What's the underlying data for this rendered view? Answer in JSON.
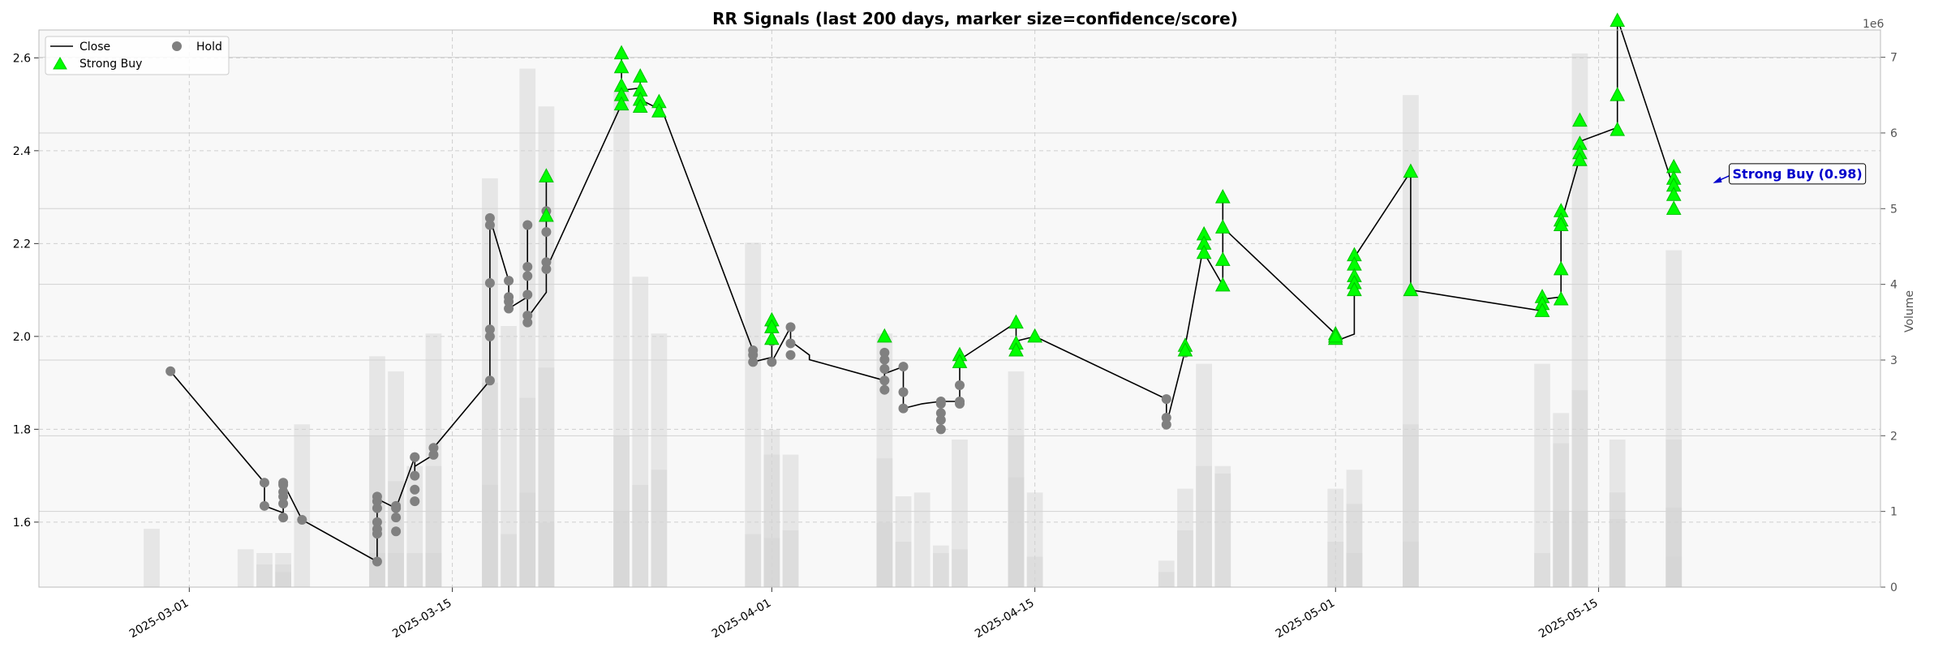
{
  "chart_data": {
    "type": "line",
    "title": "RR Signals (last 200 days, marker size=confidence/score)",
    "ylabel_right": "Volume",
    "right_axis_multiplier": "1e6",
    "xlim": [
      "2025-02-21",
      "2025-05-30"
    ],
    "ylim": [
      1.46,
      2.66
    ],
    "y2lim": [
      0,
      7.36
    ],
    "y_ticks": [
      "1.6",
      "1.8",
      "2.0",
      "2.2",
      "2.4",
      "2.6"
    ],
    "y2_ticks": [
      "0",
      "1",
      "2",
      "3",
      "4",
      "5",
      "6",
      "7"
    ],
    "x_ticks": [
      "2025-03-01",
      "2025-03-15",
      "2025-04-01",
      "2025-04-15",
      "2025-05-01",
      "2025-05-15"
    ],
    "legend": {
      "placement": "top-left",
      "entries": [
        "Close",
        "Strong Buy",
        "Hold"
      ]
    },
    "colors": {
      "close_line": "#000000",
      "strong_buy": "#00ff00",
      "hold": "#808080",
      "volume_bar": "#d3d3d3",
      "annotation": "#0000cc"
    },
    "annotation": {
      "text": "Strong Buy (0.98)",
      "x": "2025-05-21",
      "y": 2.33
    },
    "close": [
      [
        "2025-02-28",
        1.925
      ],
      [
        "2025-03-05",
        1.685
      ],
      [
        "2025-03-05",
        1.635
      ],
      [
        "2025-03-06",
        1.62
      ],
      [
        "2025-03-06",
        1.61
      ],
      [
        "2025-03-06",
        1.685
      ],
      [
        "2025-03-07",
        1.605
      ],
      [
        "2025-03-11",
        1.515
      ],
      [
        "2025-03-11",
        1.6
      ],
      [
        "2025-03-11",
        1.65
      ],
      [
        "2025-03-12",
        1.63
      ],
      [
        "2025-03-12",
        1.61
      ],
      [
        "2025-03-12",
        1.63
      ],
      [
        "2025-03-13",
        1.74
      ],
      [
        "2025-03-13",
        1.7
      ],
      [
        "2025-03-13",
        1.72
      ],
      [
        "2025-03-14",
        1.745
      ],
      [
        "2025-03-14",
        1.76
      ],
      [
        "2025-03-17",
        1.905
      ],
      [
        "2025-03-17",
        2.01
      ],
      [
        "2025-03-17",
        2.255
      ],
      [
        "2025-03-18",
        2.12
      ],
      [
        "2025-03-18",
        2.085
      ],
      [
        "2025-03-18",
        2.06
      ],
      [
        "2025-03-19",
        2.085
      ],
      [
        "2025-03-19",
        2.24
      ],
      [
        "2025-03-19",
        2.09
      ],
      [
        "2025-03-19",
        2.04
      ],
      [
        "2025-03-20",
        2.095
      ],
      [
        "2025-03-20",
        2.345
      ],
      [
        "2025-03-20",
        2.265
      ],
      [
        "2025-03-20",
        2.16
      ],
      [
        "2025-03-20",
        2.145
      ],
      [
        "2025-03-24",
        2.5
      ],
      [
        "2025-03-24",
        2.61
      ],
      [
        "2025-03-24",
        2.53
      ],
      [
        "2025-03-25",
        2.535
      ],
      [
        "2025-03-25",
        2.56
      ],
      [
        "2025-03-25",
        2.51
      ],
      [
        "2025-03-26",
        2.49
      ],
      [
        "2025-03-26",
        2.505
      ],
      [
        "2025-03-31",
        1.97
      ],
      [
        "2025-03-31",
        1.96
      ],
      [
        "2025-03-31",
        1.945
      ],
      [
        "2025-04-01",
        1.955
      ],
      [
        "2025-04-01",
        2.02
      ],
      [
        "2025-04-01",
        2.03
      ],
      [
        "2025-04-01",
        1.945
      ],
      [
        "2025-04-02",
        2.02
      ],
      [
        "2025-04-02",
        1.99
      ],
      [
        "2025-04-03",
        1.96
      ],
      [
        "2025-04-03",
        1.95
      ],
      [
        "2025-04-07",
        1.905
      ],
      [
        "2025-04-07",
        1.96
      ],
      [
        "2025-04-07",
        1.92
      ],
      [
        "2025-04-08",
        1.935
      ],
      [
        "2025-04-08",
        1.845
      ],
      [
        "2025-04-09",
        1.855
      ],
      [
        "2025-04-10",
        1.86
      ],
      [
        "2025-04-10",
        1.82
      ],
      [
        "2025-04-10",
        1.8
      ],
      [
        "2025-04-10",
        1.86
      ],
      [
        "2025-04-11",
        1.86
      ],
      [
        "2025-04-11",
        1.95
      ],
      [
        "2025-04-14",
        2.03
      ],
      [
        "2025-04-14",
        1.98
      ],
      [
        "2025-04-14",
        1.99
      ],
      [
        "2025-04-15",
        2.0
      ],
      [
        "2025-04-22",
        1.865
      ],
      [
        "2025-04-22",
        1.81
      ],
      [
        "2025-04-23",
        1.97
      ],
      [
        "2025-04-23",
        1.98
      ],
      [
        "2025-04-24",
        2.2
      ],
      [
        "2025-04-24",
        2.18
      ],
      [
        "2025-04-25",
        2.11
      ],
      [
        "2025-04-25",
        2.3
      ],
      [
        "2025-04-25",
        2.235
      ],
      [
        "2025-05-01",
        2.005
      ],
      [
        "2025-05-01",
        1.99
      ],
      [
        "2025-05-02",
        2.005
      ],
      [
        "2025-05-02",
        2.145
      ],
      [
        "2025-05-02",
        2.17
      ],
      [
        "2025-05-05",
        2.355
      ],
      [
        "2025-05-05",
        2.1
      ],
      [
        "2025-05-12",
        2.055
      ],
      [
        "2025-05-12",
        2.08
      ],
      [
        "2025-05-13",
        2.085
      ],
      [
        "2025-05-13",
        2.26
      ],
      [
        "2025-05-13",
        2.245
      ],
      [
        "2025-05-14",
        2.385
      ],
      [
        "2025-05-14",
        2.42
      ],
      [
        "2025-05-16",
        2.45
      ],
      [
        "2025-05-16",
        2.685
      ],
      [
        "2025-05-19",
        2.32
      ],
      [
        "2025-05-19",
        2.345
      ]
    ],
    "signals": {
      "strong_buy": [
        [
          "2025-03-20",
          2.345
        ],
        [
          "2025-03-20",
          2.26
        ],
        [
          "2025-03-24",
          2.61
        ],
        [
          "2025-03-24",
          2.58
        ],
        [
          "2025-03-24",
          2.54
        ],
        [
          "2025-03-24",
          2.52
        ],
        [
          "2025-03-24",
          2.5
        ],
        [
          "2025-03-25",
          2.56
        ],
        [
          "2025-03-25",
          2.53
        ],
        [
          "2025-03-25",
          2.51
        ],
        [
          "2025-03-25",
          2.495
        ],
        [
          "2025-03-26",
          2.505
        ],
        [
          "2025-03-26",
          2.485
        ],
        [
          "2025-04-01",
          1.995
        ],
        [
          "2025-04-01",
          2.035
        ],
        [
          "2025-04-01",
          2.02
        ],
        [
          "2025-04-07",
          2.0
        ],
        [
          "2025-04-11",
          1.96
        ],
        [
          "2025-04-11",
          1.945
        ],
        [
          "2025-04-14",
          2.03
        ],
        [
          "2025-04-14",
          1.985
        ],
        [
          "2025-04-14",
          1.97
        ],
        [
          "2025-04-15",
          2.0
        ],
        [
          "2025-04-23",
          1.98
        ],
        [
          "2025-04-23",
          1.97
        ],
        [
          "2025-04-24",
          2.22
        ],
        [
          "2025-04-24",
          2.2
        ],
        [
          "2025-04-24",
          2.18
        ],
        [
          "2025-04-25",
          2.3
        ],
        [
          "2025-04-25",
          2.235
        ],
        [
          "2025-04-25",
          2.165
        ],
        [
          "2025-04-25",
          2.11
        ],
        [
          "2025-05-01",
          2.005
        ],
        [
          "2025-05-01",
          1.995
        ],
        [
          "2025-05-01",
          2.0
        ],
        [
          "2025-05-02",
          2.175
        ],
        [
          "2025-05-02",
          2.155
        ],
        [
          "2025-05-02",
          2.13
        ],
        [
          "2025-05-02",
          2.115
        ],
        [
          "2025-05-02",
          2.1
        ],
        [
          "2025-05-05",
          2.355
        ],
        [
          "2025-05-05",
          2.1
        ],
        [
          "2025-05-12",
          2.085
        ],
        [
          "2025-05-12",
          2.07
        ],
        [
          "2025-05-12",
          2.055
        ],
        [
          "2025-05-13",
          2.08
        ],
        [
          "2025-05-13",
          2.145
        ],
        [
          "2025-05-13",
          2.27
        ],
        [
          "2025-05-13",
          2.25
        ],
        [
          "2025-05-13",
          2.24
        ],
        [
          "2025-05-14",
          2.465
        ],
        [
          "2025-05-14",
          2.415
        ],
        [
          "2025-05-14",
          2.395
        ],
        [
          "2025-05-14",
          2.38
        ],
        [
          "2025-05-16",
          2.68
        ],
        [
          "2025-05-16",
          2.52
        ],
        [
          "2025-05-16",
          2.445
        ],
        [
          "2025-05-19",
          2.365
        ],
        [
          "2025-05-19",
          2.34
        ],
        [
          "2025-05-19",
          2.325
        ],
        [
          "2025-05-19",
          2.305
        ],
        [
          "2025-05-19",
          2.275
        ]
      ],
      "hold": [
        [
          "2025-02-28",
          1.925
        ],
        [
          "2025-03-05",
          1.685
        ],
        [
          "2025-03-05",
          1.635
        ],
        [
          "2025-03-06",
          1.68
        ],
        [
          "2025-03-06",
          1.685
        ],
        [
          "2025-03-06",
          1.665
        ],
        [
          "2025-03-06",
          1.655
        ],
        [
          "2025-03-06",
          1.64
        ],
        [
          "2025-03-06",
          1.61
        ],
        [
          "2025-03-07",
          1.605
        ],
        [
          "2025-03-11",
          1.515
        ],
        [
          "2025-03-11",
          1.6
        ],
        [
          "2025-03-11",
          1.585
        ],
        [
          "2025-03-11",
          1.575
        ],
        [
          "2025-03-11",
          1.63
        ],
        [
          "2025-03-11",
          1.655
        ],
        [
          "2025-03-11",
          1.645
        ],
        [
          "2025-03-12",
          1.63
        ],
        [
          "2025-03-12",
          1.61
        ],
        [
          "2025-03-12",
          1.58
        ],
        [
          "2025-03-12",
          1.635
        ],
        [
          "2025-03-13",
          1.74
        ],
        [
          "2025-03-13",
          1.74
        ],
        [
          "2025-03-13",
          1.7
        ],
        [
          "2025-03-13",
          1.67
        ],
        [
          "2025-03-13",
          1.645
        ],
        [
          "2025-03-14",
          1.76
        ],
        [
          "2025-03-14",
          1.745
        ],
        [
          "2025-03-17",
          1.905
        ],
        [
          "2025-03-17",
          2.0
        ],
        [
          "2025-03-17",
          2.015
        ],
        [
          "2025-03-17",
          2.115
        ],
        [
          "2025-03-17",
          2.255
        ],
        [
          "2025-03-17",
          2.24
        ],
        [
          "2025-03-18",
          2.12
        ],
        [
          "2025-03-18",
          2.085
        ],
        [
          "2025-03-18",
          2.075
        ],
        [
          "2025-03-18",
          2.06
        ],
        [
          "2025-03-19",
          2.24
        ],
        [
          "2025-03-19",
          2.15
        ],
        [
          "2025-03-19",
          2.13
        ],
        [
          "2025-03-19",
          2.09
        ],
        [
          "2025-03-19",
          2.045
        ],
        [
          "2025-03-19",
          2.03
        ],
        [
          "2025-03-20",
          2.27
        ],
        [
          "2025-03-20",
          2.225
        ],
        [
          "2025-03-20",
          2.16
        ],
        [
          "2025-03-20",
          2.145
        ],
        [
          "2025-03-31",
          1.97
        ],
        [
          "2025-03-31",
          1.96
        ],
        [
          "2025-03-31",
          1.945
        ],
        [
          "2025-04-01",
          2.02
        ],
        [
          "2025-04-01",
          1.99
        ],
        [
          "2025-04-01",
          1.945
        ],
        [
          "2025-04-02",
          2.02
        ],
        [
          "2025-04-02",
          1.985
        ],
        [
          "2025-04-02",
          1.96
        ],
        [
          "2025-04-07",
          1.905
        ],
        [
          "2025-04-07",
          1.885
        ],
        [
          "2025-04-07",
          1.965
        ],
        [
          "2025-04-07",
          1.95
        ],
        [
          "2025-04-07",
          1.93
        ],
        [
          "2025-04-08",
          1.935
        ],
        [
          "2025-04-08",
          1.88
        ],
        [
          "2025-04-08",
          1.845
        ],
        [
          "2025-04-10",
          1.86
        ],
        [
          "2025-04-10",
          1.855
        ],
        [
          "2025-04-10",
          1.835
        ],
        [
          "2025-04-10",
          1.82
        ],
        [
          "2025-04-10",
          1.8
        ],
        [
          "2025-04-11",
          1.86
        ],
        [
          "2025-04-11",
          1.855
        ],
        [
          "2025-04-11",
          1.895
        ],
        [
          "2025-04-22",
          1.865
        ],
        [
          "2025-04-22",
          1.825
        ],
        [
          "2025-04-22",
          1.81
        ],
        [
          "2025-04-23",
          1.965
        ]
      ]
    },
    "volume": [
      [
        "2025-02-27",
        0.77
      ],
      [
        "2025-03-04",
        0.5
      ],
      [
        "2025-03-05",
        0.45
      ],
      [
        "2025-03-05",
        0.3
      ],
      [
        "2025-03-06",
        0.45
      ],
      [
        "2025-03-06",
        0.3
      ],
      [
        "2025-03-06",
        0.2
      ],
      [
        "2025-03-07",
        2.15
      ],
      [
        "2025-03-11",
        3.05
      ],
      [
        "2025-03-11",
        2.0
      ],
      [
        "2025-03-11",
        0.45
      ],
      [
        "2025-03-12",
        2.85
      ],
      [
        "2025-03-12",
        1.4
      ],
      [
        "2025-03-12",
        0.45
      ],
      [
        "2025-03-13",
        1.6
      ],
      [
        "2025-03-13",
        0.45
      ],
      [
        "2025-03-14",
        3.35
      ],
      [
        "2025-03-14",
        1.6
      ],
      [
        "2025-03-14",
        0.45
      ],
      [
        "2025-03-17",
        5.4
      ],
      [
        "2025-03-17",
        2.7
      ],
      [
        "2025-03-17",
        1.35
      ],
      [
        "2025-03-18",
        3.45
      ],
      [
        "2025-03-18",
        0.7
      ],
      [
        "2025-03-19",
        6.85
      ],
      [
        "2025-03-19",
        2.5
      ],
      [
        "2025-03-19",
        1.25
      ],
      [
        "2025-03-20",
        6.35
      ],
      [
        "2025-03-20",
        2.9
      ],
      [
        "2025-03-20",
        0.85
      ],
      [
        "2025-03-24",
        6.55
      ],
      [
        "2025-03-24",
        2.0
      ],
      [
        "2025-03-24",
        1.0
      ],
      [
        "2025-03-25",
        4.1
      ],
      [
        "2025-03-25",
        1.35
      ],
      [
        "2025-03-26",
        3.35
      ],
      [
        "2025-03-26",
        1.55
      ],
      [
        "2025-03-31",
        4.55
      ],
      [
        "2025-03-31",
        0.7
      ],
      [
        "2025-04-01",
        2.08
      ],
      [
        "2025-04-01",
        1.75
      ],
      [
        "2025-04-01",
        0.65
      ],
      [
        "2025-04-02",
        1.75
      ],
      [
        "2025-04-02",
        0.75
      ],
      [
        "2025-04-07",
        3.35
      ],
      [
        "2025-04-07",
        1.7
      ],
      [
        "2025-04-07",
        0.85
      ],
      [
        "2025-04-08",
        1.2
      ],
      [
        "2025-04-08",
        0.6
      ],
      [
        "2025-04-09",
        1.25
      ],
      [
        "2025-04-10",
        0.55
      ],
      [
        "2025-04-10",
        0.45
      ],
      [
        "2025-04-11",
        1.95
      ],
      [
        "2025-04-11",
        0.5
      ],
      [
        "2025-04-14",
        2.85
      ],
      [
        "2025-04-14",
        2.0
      ],
      [
        "2025-04-14",
        1.45
      ],
      [
        "2025-04-15",
        1.25
      ],
      [
        "2025-04-15",
        0.4
      ],
      [
        "2025-04-22",
        0.35
      ],
      [
        "2025-04-22",
        0.2
      ],
      [
        "2025-04-23",
        1.3
      ],
      [
        "2025-04-23",
        0.75
      ],
      [
        "2025-04-24",
        2.95
      ],
      [
        "2025-04-24",
        1.6
      ],
      [
        "2025-04-25",
        1.6
      ],
      [
        "2025-04-25",
        1.5
      ],
      [
        "2025-05-01",
        1.3
      ],
      [
        "2025-05-01",
        0.6
      ],
      [
        "2025-05-02",
        1.55
      ],
      [
        "2025-05-02",
        1.1
      ],
      [
        "2025-05-02",
        0.45
      ],
      [
        "2025-05-05",
        6.5
      ],
      [
        "2025-05-05",
        2.15
      ],
      [
        "2025-05-05",
        0.6
      ],
      [
        "2025-05-12",
        2.95
      ],
      [
        "2025-05-12",
        0.45
      ],
      [
        "2025-05-13",
        2.3
      ],
      [
        "2025-05-13",
        1.9
      ],
      [
        "2025-05-13",
        1.0
      ],
      [
        "2025-05-14",
        7.05
      ],
      [
        "2025-05-14",
        2.6
      ],
      [
        "2025-05-14",
        1.0
      ],
      [
        "2025-05-16",
        1.95
      ],
      [
        "2025-05-16",
        1.25
      ],
      [
        "2025-05-16",
        0.9
      ],
      [
        "2025-05-19",
        4.45
      ],
      [
        "2025-05-19",
        1.95
      ],
      [
        "2025-05-19",
        1.05
      ],
      [
        "2025-05-19",
        0.4
      ]
    ]
  }
}
